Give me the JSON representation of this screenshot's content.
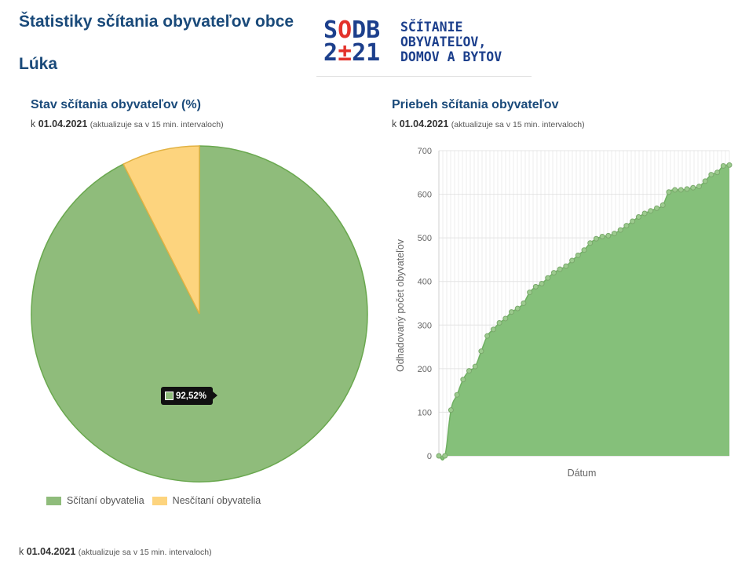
{
  "page": {
    "title": "Štatistiky sčítania obyvateľov obce",
    "municipality": "Lúka",
    "footer_prefix": "k",
    "footer_date": "01.04.2021",
    "footer_note": "(aktualizuje sa v 15 min. intervaloch)"
  },
  "logo": {
    "mark_top_a": "S",
    "mark_top_o": "O",
    "mark_top_b": "DB",
    "mark_bot_a": "2",
    "mark_bot_plus": "±",
    "mark_bot_b": "21",
    "line1": "SČÍTANIE",
    "line2": "OBYVATEĽOV,",
    "line3": "DOMOV A BYTOV"
  },
  "pie_card": {
    "title": "Stav sčítania obyvateľov (%)",
    "prefix": "k",
    "date": "01.04.2021",
    "note": "(aktualizuje sa v 15 min. intervaloch)",
    "tooltip": "92,52%"
  },
  "line_card": {
    "title": "Priebeh sčítania obyvateľov",
    "prefix": "k",
    "date": "01.04.2021",
    "note": "(aktualizuje sa v 15 min. intervaloch)"
  },
  "colors": {
    "counted": "#8fbc7b",
    "uncounted": "#fdd47e",
    "counted_border": "#6aa84f",
    "uncounted_border": "#e2b243"
  },
  "chart_data": [
    {
      "type": "pie",
      "title": "Stav sčítania obyvateľov (%)",
      "categories": [
        "Sčítaní obyvatelia",
        "Nesčítaní obyvatelia"
      ],
      "values": [
        92.52,
        7.48
      ],
      "legend": "bottom-left"
    },
    {
      "type": "area",
      "title": "Priebeh sčítania obyvateľov",
      "xlabel": "Dátum",
      "ylabel": "Odhadovaný počet obyvateľov",
      "ylim": [
        0,
        700
      ],
      "yticks": [
        0,
        100,
        200,
        300,
        400,
        500,
        600,
        700
      ],
      "grid": true,
      "series": [
        {
          "values": [
            0,
            0,
            105,
            140,
            175,
            195,
            205,
            240,
            275,
            290,
            305,
            315,
            330,
            338,
            350,
            375,
            388,
            395,
            408,
            420,
            428,
            435,
            448,
            460,
            472,
            488,
            498,
            503,
            505,
            510,
            518,
            528,
            538,
            548,
            556,
            562,
            568,
            575,
            605,
            610,
            610,
            612,
            615,
            618,
            630,
            645,
            650,
            665,
            667
          ]
        }
      ]
    }
  ]
}
